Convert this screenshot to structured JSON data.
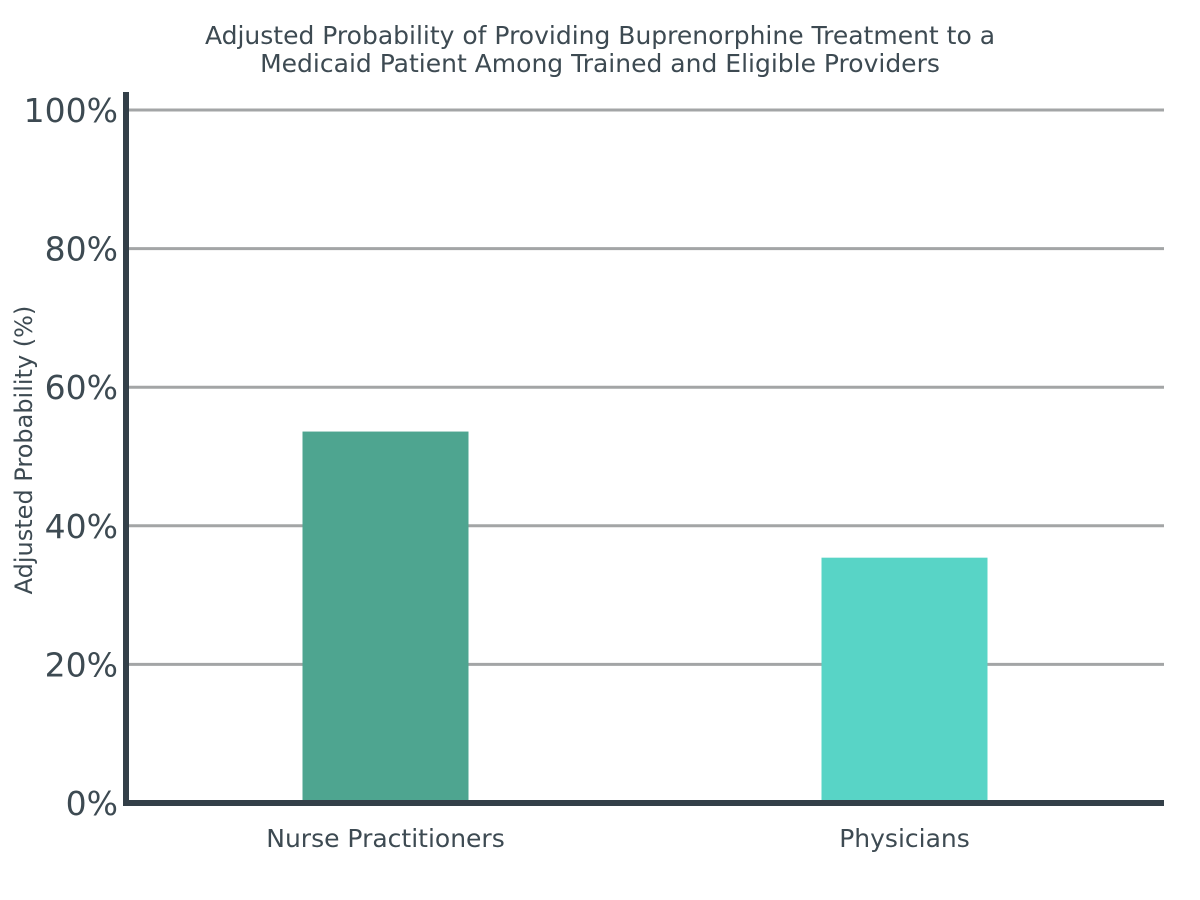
{
  "chart_data": {
    "type": "bar",
    "title_lines": [
      "Adjusted Probability of Providing Buprenorphine Treatment to a",
      "Medicaid Patient Among Trained and Eligible Providers"
    ],
    "xlabel": "",
    "ylabel": "Adjusted Probability (%)",
    "categories": [
      "Nurse Practitioners",
      "Physicians"
    ],
    "values": [
      53.6,
      35.4
    ],
    "bar_colors": [
      "#4ea590",
      "#58d4c6"
    ],
    "ylim": [
      0,
      100
    ],
    "yticks": [
      0,
      20,
      40,
      60,
      80,
      100
    ],
    "ytick_labels": [
      "0%",
      "20%",
      "40%",
      "60%",
      "80%",
      "100%"
    ],
    "grid": true,
    "legend": "none"
  },
  "colors": {
    "text": "#3d4a52",
    "axis": "#333f48",
    "grid": "#a3a5a6"
  }
}
